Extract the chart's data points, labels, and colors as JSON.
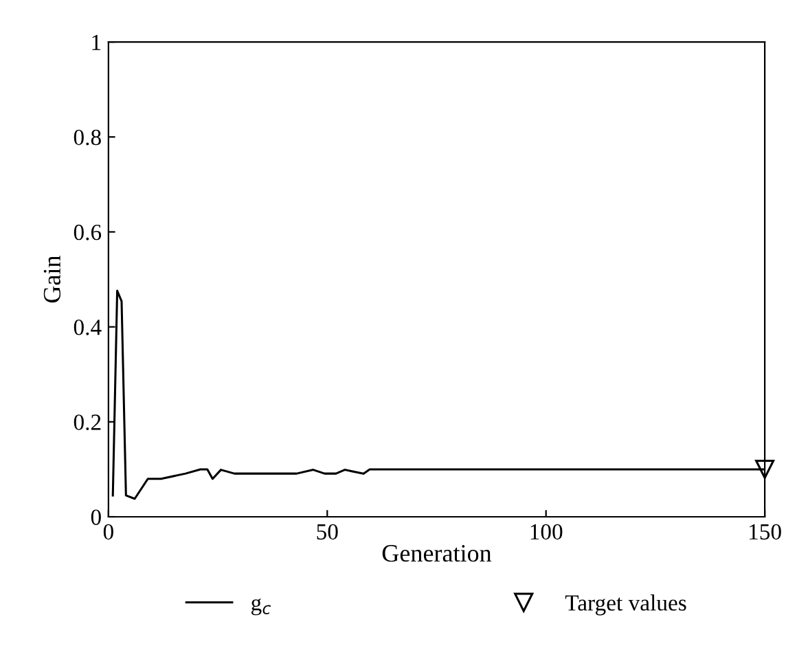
{
  "chart_data": {
    "type": "line",
    "xlabel": "Generation",
    "ylabel": "Gain",
    "xlim": [
      0,
      150
    ],
    "ylim": [
      0,
      1
    ],
    "xticks": [
      0,
      50,
      100,
      150
    ],
    "yticks": [
      0,
      0.2,
      0.4,
      0.6,
      0.8,
      1
    ],
    "grid": false,
    "legend": "bottom",
    "marker": "none",
    "line_style": "solid",
    "series": [
      {
        "name": "g$_{c}$",
        "color": "#000000",
        "x": [
          1,
          2,
          3,
          4,
          6,
          9,
          12,
          17.6,
          21,
          22.6,
          23.8,
          25.7,
          28.8,
          43,
          46.8,
          49.4,
          52,
          54,
          58.3,
          59.7,
          150
        ],
        "values": [
          0.045,
          0.476,
          0.454,
          0.045,
          0.038,
          0.08,
          0.08,
          0.091,
          0.1,
          0.1,
          0.08,
          0.099,
          0.091,
          0.091,
          0.099,
          0.091,
          0.091,
          0.099,
          0.091,
          0.1,
          0.1
        ]
      },
      {
        "name": "Target values",
        "type": "scatter",
        "marker": "triangle",
        "color": "#000000",
        "x": [
          150
        ],
        "values": [
          0.1
        ]
      }
    ]
  }
}
